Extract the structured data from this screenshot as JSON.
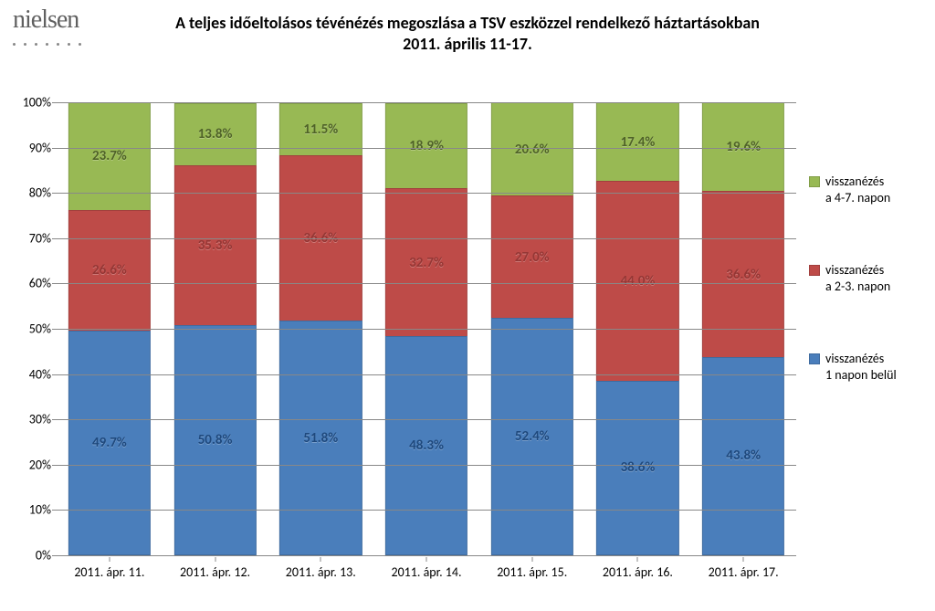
{
  "logo": {
    "text": "nielsen"
  },
  "title": {
    "line1": "A teljes időeltolásos tévénézés megoszlása a TSV eszközzel rendelkező háztartásokban",
    "line2": "2011. április 11-17."
  },
  "title_fontsize": 18,
  "chart": {
    "type": "stacked_bar_100pct",
    "background_color": "#ffffff",
    "grid_color": "#888888",
    "axis_font_size": 14,
    "ylim": [
      0,
      100
    ],
    "ytick_step": 10,
    "bar_width_ratio": 0.78,
    "series": [
      {
        "key": "d1",
        "label": "visszanézés\n1 napon belül",
        "color": "#4a7ebb",
        "label_color": "#1f497d"
      },
      {
        "key": "d23",
        "label": "visszanézés\na 2-3. napon",
        "color": "#be4b48",
        "label_color": "#953735"
      },
      {
        "key": "d47",
        "label": "visszanézés\na 4-7. napon",
        "color": "#98b954",
        "label_color": "#4f6228"
      }
    ],
    "categories": [
      "2011. ápr. 11.",
      "2011. ápr. 12.",
      "2011. ápr. 13.",
      "2011. ápr. 14.",
      "2011. ápr. 15.",
      "2011. ápr. 16.",
      "2011. ápr. 17."
    ],
    "data": [
      {
        "d1": 49.7,
        "d23": 26.6,
        "d47": 23.7
      },
      {
        "d1": 50.8,
        "d23": 35.3,
        "d47": 13.8
      },
      {
        "d1": 51.8,
        "d23": 36.6,
        "d47": 11.5
      },
      {
        "d1": 48.3,
        "d23": 32.7,
        "d47": 18.9
      },
      {
        "d1": 52.4,
        "d23": 27.0,
        "d47": 20.6
      },
      {
        "d1": 38.6,
        "d23": 44.0,
        "d47": 17.4
      },
      {
        "d1": 43.8,
        "d23": 36.6,
        "d47": 19.6
      }
    ],
    "value_label_fontsize": 15,
    "value_label_suffix": "%",
    "value_label_decimals": 1
  }
}
